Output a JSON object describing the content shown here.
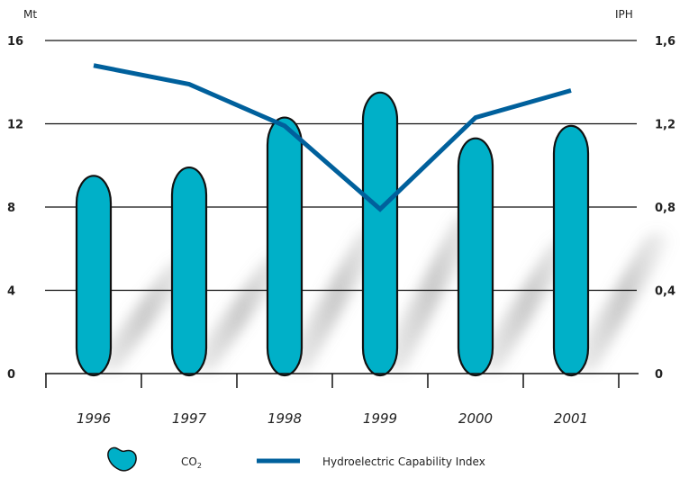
{
  "chart_data": {
    "type": "bar",
    "categories": [
      "1996",
      "1997",
      "1998",
      "1999",
      "2000",
      "2001"
    ],
    "left_axis": {
      "unit": "Mt",
      "ylim": [
        0,
        16
      ],
      "ticks": [
        0,
        4,
        8,
        12,
        16
      ],
      "tick_labels": [
        "0",
        "4",
        "8",
        "12",
        "16"
      ]
    },
    "right_axis": {
      "unit": "IPH",
      "ylim": [
        0,
        1.6
      ],
      "ticks": [
        0,
        0.4,
        0.8,
        1.2,
        1.6
      ],
      "tick_labels": [
        "0",
        "0,4",
        "0,8",
        "1,2",
        "1,6"
      ]
    },
    "series": [
      {
        "name": "CO2",
        "type": "bar",
        "axis": "left",
        "values": [
          9.5,
          9.9,
          12.3,
          13.5,
          11.3,
          11.9
        ],
        "color": "#00b0c8"
      },
      {
        "name": "Hydroelectric Capability Index",
        "type": "line",
        "axis": "right",
        "values": [
          1.48,
          1.39,
          1.19,
          0.79,
          1.23,
          1.36
        ],
        "color": "#00609c"
      }
    ],
    "legend": {
      "position": "bottom",
      "co2_main": "CO",
      "co2_sub": "2",
      "line_label": "Hydroelectric Capability Index"
    },
    "grid": true
  }
}
